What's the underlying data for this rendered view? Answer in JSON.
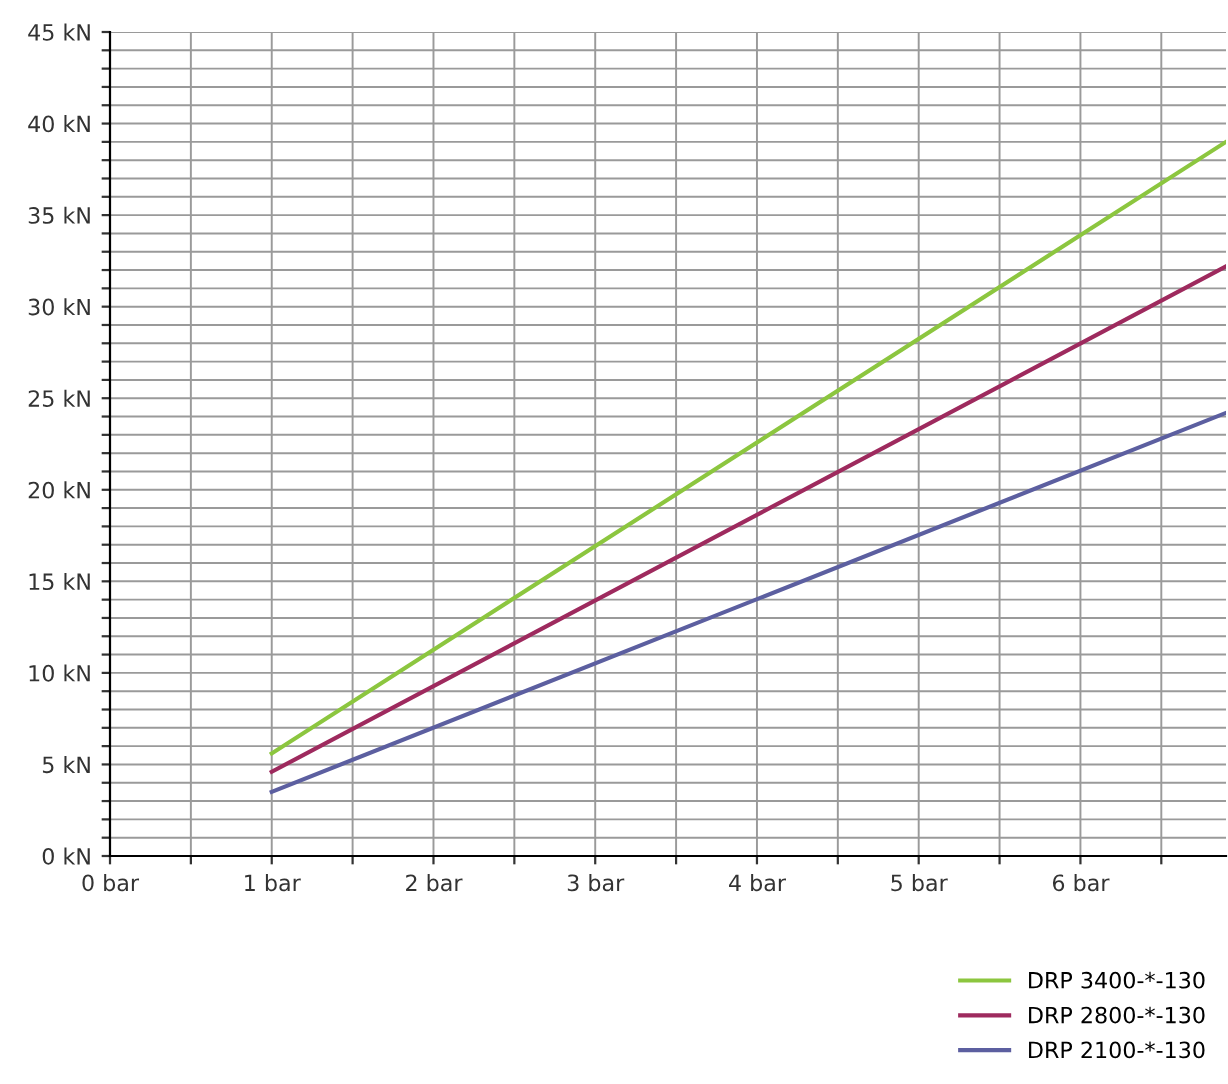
{
  "chart_data": {
    "type": "line",
    "xlim": [
      0,
      6.9
    ],
    "ylim": [
      0,
      45
    ],
    "xticks": [
      {
        "value": 0,
        "label": "0 bar"
      },
      {
        "value": 0.5,
        "label": null
      },
      {
        "value": 1,
        "label": "1 bar"
      },
      {
        "value": 1.5,
        "label": null
      },
      {
        "value": 2,
        "label": "2 bar"
      },
      {
        "value": 2.5,
        "label": null
      },
      {
        "value": 3,
        "label": "3 bar"
      },
      {
        "value": 3.5,
        "label": null
      },
      {
        "value": 4,
        "label": "4 bar"
      },
      {
        "value": 4.5,
        "label": null
      },
      {
        "value": 5,
        "label": "5 bar"
      },
      {
        "value": 5.5,
        "label": null
      },
      {
        "value": 6,
        "label": "6 bar"
      },
      {
        "value": 6.5,
        "label": null
      }
    ],
    "yticks": [
      {
        "value": 0,
        "label": "0 kN"
      },
      {
        "value": 1,
        "label": null
      },
      {
        "value": 2,
        "label": null
      },
      {
        "value": 3,
        "label": null
      },
      {
        "value": 4,
        "label": null
      },
      {
        "value": 5,
        "label": "5 kN"
      },
      {
        "value": 6,
        "label": null
      },
      {
        "value": 7,
        "label": null
      },
      {
        "value": 8,
        "label": null
      },
      {
        "value": 9,
        "label": null
      },
      {
        "value": 10,
        "label": "10 kN"
      },
      {
        "value": 11,
        "label": null
      },
      {
        "value": 12,
        "label": null
      },
      {
        "value": 13,
        "label": null
      },
      {
        "value": 14,
        "label": null
      },
      {
        "value": 15,
        "label": "15 kN"
      },
      {
        "value": 16,
        "label": null
      },
      {
        "value": 17,
        "label": null
      },
      {
        "value": 18,
        "label": null
      },
      {
        "value": 19,
        "label": null
      },
      {
        "value": 20,
        "label": "20 kN"
      },
      {
        "value": 21,
        "label": null
      },
      {
        "value": 22,
        "label": null
      },
      {
        "value": 23,
        "label": null
      },
      {
        "value": 24,
        "label": null
      },
      {
        "value": 25,
        "label": "25 kN"
      },
      {
        "value": 26,
        "label": null
      },
      {
        "value": 27,
        "label": null
      },
      {
        "value": 28,
        "label": null
      },
      {
        "value": 29,
        "label": null
      },
      {
        "value": 30,
        "label": "30 kN"
      },
      {
        "value": 31,
        "label": null
      },
      {
        "value": 32,
        "label": null
      },
      {
        "value": 33,
        "label": null
      },
      {
        "value": 34,
        "label": null
      },
      {
        "value": 35,
        "label": "35 kN"
      },
      {
        "value": 36,
        "label": null
      },
      {
        "value": 37,
        "label": null
      },
      {
        "value": 38,
        "label": null
      },
      {
        "value": 39,
        "label": null
      },
      {
        "value": 40,
        "label": "40 kN"
      },
      {
        "value": 41,
        "label": null
      },
      {
        "value": 42,
        "label": null
      },
      {
        "value": 43,
        "label": null
      },
      {
        "value": 44,
        "label": null
      },
      {
        "value": 45,
        "label": "45 kN"
      }
    ],
    "x": [
      1,
      6.9
    ],
    "series": [
      {
        "name": "DRP 3400-*-130",
        "color": "#8cc63f",
        "values": [
          5.6,
          39.0
        ]
      },
      {
        "name": "DRP 2800-*-130",
        "color": "#9e2a5e",
        "values": [
          4.6,
          32.2
        ]
      },
      {
        "name": "DRP 2100-*-130",
        "color": "#5c5fa0",
        "values": [
          3.5,
          24.2
        ]
      }
    ],
    "grid": true,
    "legend": "bottom right",
    "marker": "none",
    "line_style": "solid"
  }
}
